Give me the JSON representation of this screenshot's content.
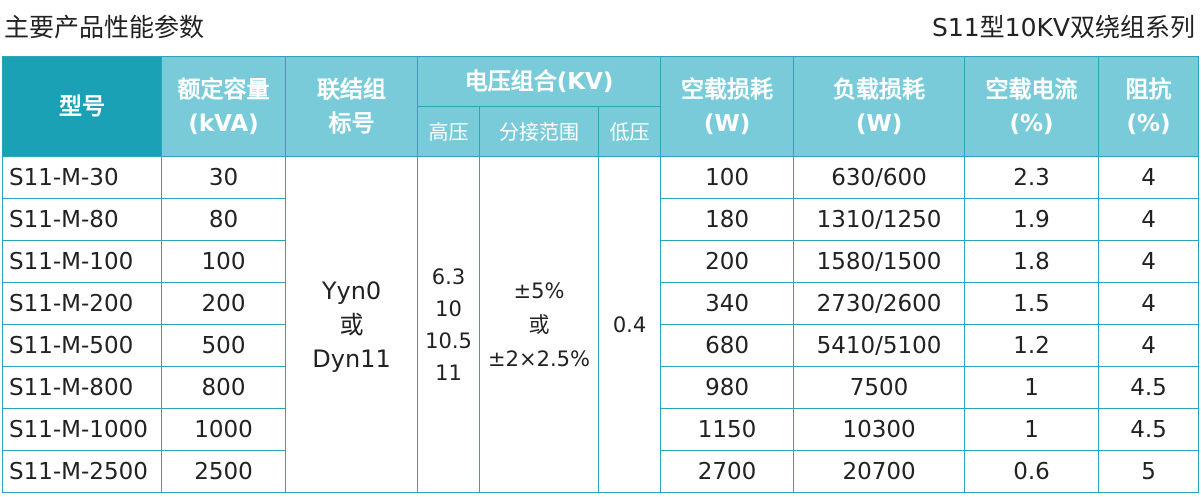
{
  "page": {
    "title_left": "主要产品性能参数",
    "title_right": "S11型10KV双绕组系列"
  },
  "header": {
    "model": "型号",
    "capacity_line1": "额定容量",
    "capacity_line2": "(kVA)",
    "connection_line1": "联结组",
    "connection_line2": "标号",
    "voltage_group": "电压组合(KV)",
    "voltage_high": "高压",
    "voltage_tap": "分接范围",
    "voltage_low": "低压",
    "noload_loss_line1": "空载损耗",
    "noload_loss_line2": "(W)",
    "load_loss_line1": "负载损耗",
    "load_loss_line2": "(W)",
    "noload_current_line1": "空载电流",
    "noload_current_line2": "(%)",
    "impedance_line1": "阻抗",
    "impedance_line2": "(%)"
  },
  "shared": {
    "connection_1": "Yyn0",
    "connection_2": "或",
    "connection_3": "Dyn11",
    "high_voltage_1": "6.3",
    "high_voltage_2": "10",
    "high_voltage_3": "10.5",
    "high_voltage_4": "11",
    "tap_1": "±5%",
    "tap_2": "或",
    "tap_3": "±2×2.5%",
    "low_voltage": "0.4"
  },
  "rows": [
    {
      "model": "S11-M-30",
      "capacity": "30",
      "noload_loss": "100",
      "load_loss": "630/600",
      "noload_current": "2.3",
      "impedance": "4"
    },
    {
      "model": "S11-M-80",
      "capacity": "80",
      "noload_loss": "180",
      "load_loss": "1310/1250",
      "noload_current": "1.9",
      "impedance": "4"
    },
    {
      "model": "S11-M-100",
      "capacity": "100",
      "noload_loss": "200",
      "load_loss": "1580/1500",
      "noload_current": "1.8",
      "impedance": "4"
    },
    {
      "model": "S11-M-200",
      "capacity": "200",
      "noload_loss": "340",
      "load_loss": "2730/2600",
      "noload_current": "1.5",
      "impedance": "4"
    },
    {
      "model": "S11-M-500",
      "capacity": "500",
      "noload_loss": "680",
      "load_loss": "5410/5100",
      "noload_current": "1.2",
      "impedance": "4"
    },
    {
      "model": "S11-M-800",
      "capacity": "800",
      "noload_loss": "980",
      "load_loss": "7500",
      "noload_current": "1",
      "impedance": "4.5"
    },
    {
      "model": "S11-M-1000",
      "capacity": "1000",
      "noload_loss": "1150",
      "load_loss": "10300",
      "noload_current": "1",
      "impedance": "4.5"
    },
    {
      "model": "S11-M-2500",
      "capacity": "2500",
      "noload_loss": "2700",
      "load_loss": "20700",
      "noload_current": "0.6",
      "impedance": "5"
    }
  ],
  "colors": {
    "header_accent": "#1ba1b6",
    "header_light": "#7acbda",
    "border": "#2ba3b9"
  }
}
